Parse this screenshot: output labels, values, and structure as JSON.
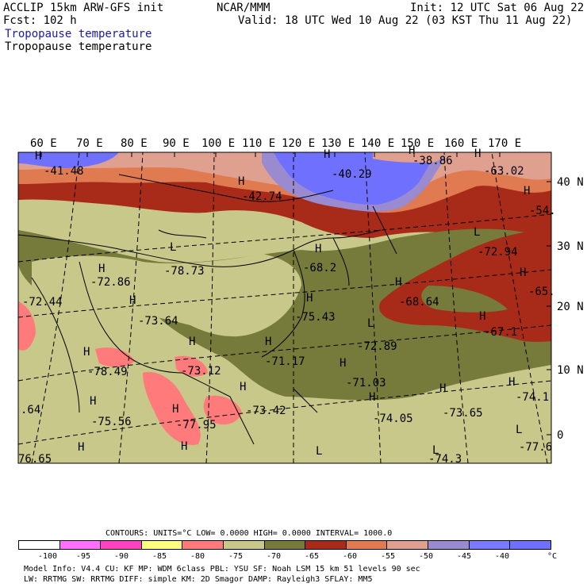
{
  "header": {
    "title_left": "ACCLIP 15km ARW-GFS init",
    "forecast": "Fcst:  102 h",
    "center": "NCAR/MMM",
    "init": "Init: 12 UTC Sat 06 Aug 22",
    "valid": "Valid: 18 UTC Wed 10 Aug 22 (03 KST Thu 11 Aug 22)",
    "field_1": "Tropopause temperature",
    "field_2": "Tropopause temperature"
  },
  "colors": {
    "field_1_text": "#1a1aa8",
    "n100": "#ffffff",
    "n95": "#ff70ff",
    "n90": "#ff40c0",
    "n85": "#ffff80",
    "n80": "#ff7a7a",
    "n75": "#c8c88a",
    "n70": "#767a3a",
    "n65": "#a82a18",
    "n60": "#e07a50",
    "n55": "#e0a090",
    "n50": "#9a8ad0",
    "n45": "#7a7aff",
    "n40": "#7070ff"
  },
  "map": {
    "lon_labels": [
      "60 E",
      "70 E",
      "80 E",
      "90 E",
      "100 E",
      "110 E",
      "120 E",
      "130 E",
      "140 E",
      "150 E",
      "160 E",
      "170 E"
    ],
    "lat_labels": [
      "40 N",
      "30 N",
      "20 N",
      "10 N",
      "0"
    ],
    "extrema": [
      {
        "sym": "H",
        "value": "-41.48"
      },
      {
        "sym": "H",
        "value": "-42.74"
      },
      {
        "sym": "H",
        "value": "-40.29"
      },
      {
        "sym": "H",
        "value": "-38.86"
      },
      {
        "sym": "H",
        "value": "-63.02"
      },
      {
        "sym": "H",
        "value": "-54."
      },
      {
        "sym": "L",
        "value": "-72.94"
      },
      {
        "sym": "H",
        "value": "-65."
      },
      {
        "sym": "H",
        "value": "-67.1"
      },
      {
        "sym": "H",
        "value": "-68.64"
      },
      {
        "sym": "H",
        "value": "-68.2"
      },
      {
        "sym": "L",
        "value": "-78.73"
      },
      {
        "sym": "H",
        "value": "-72.86"
      },
      {
        "sym": "",
        "value": "-72.44"
      },
      {
        "sym": "H",
        "value": "-73.64"
      },
      {
        "sym": "H",
        "value": "-75.43"
      },
      {
        "sym": "L",
        "value": "-72.89"
      },
      {
        "sym": "H",
        "value": "-71.17"
      },
      {
        "sym": "H",
        "value": "-71.03"
      },
      {
        "sym": "H",
        "value": "-78.49"
      },
      {
        "sym": "H",
        "value": "-73.12"
      },
      {
        "sym": "",
        "value": ".64"
      },
      {
        "sym": "H",
        "value": "-75.56"
      },
      {
        "sym": "H",
        "value": "-77.95"
      },
      {
        "sym": "H",
        "value": "-73.42"
      },
      {
        "sym": "H",
        "value": "-74.05"
      },
      {
        "sym": "H",
        "value": "-73.65"
      },
      {
        "sym": "H",
        "value": "-74.1"
      },
      {
        "sym": "L",
        "value": "-77.6"
      },
      {
        "sym": "",
        "value": "76.65"
      },
      {
        "sym": "L",
        "value": ""
      },
      {
        "sym": "H",
        "value": ""
      },
      {
        "sym": "H",
        "value": ""
      },
      {
        "sym": "L",
        "value": "-74.3"
      }
    ]
  },
  "contours": {
    "text": "CONTOURS:  UNITS=°C  LOW=  0.0000       HIGH=  0.0000       INTERVAL=   1000.0"
  },
  "legend": {
    "labels": [
      "-100",
      "-95",
      "-90",
      "-85",
      "-80",
      "-75",
      "-70",
      "-65",
      "-60",
      "-55",
      "-50",
      "-45",
      "-40",
      "°C"
    ]
  },
  "footer": {
    "line1": "Model Info: V4.4      CU: KF      MP: WDM 6class  PBL: YSU       SF: Noah LSM     15 km    51 levels   90 sec",
    "line2": "               LW: RRTMG    SW: RRTMG   DIFF: simple KM: 2D Smagor DAMP: Rayleigh3  SFLAY: MM5"
  }
}
